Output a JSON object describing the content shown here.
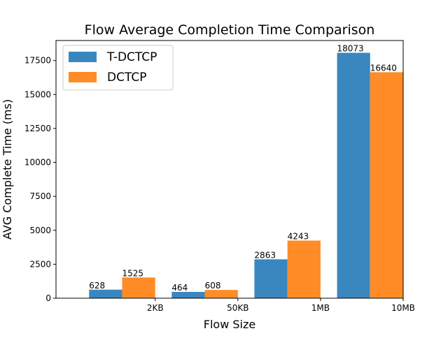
{
  "chart_data": {
    "type": "bar",
    "title": "Flow Average Completion Time Comparison",
    "xlabel": "Flow Size",
    "ylabel": "AVG Complete Time (ms)",
    "categories": [
      "2KB",
      "50KB",
      "1MB",
      "10MB"
    ],
    "series": [
      {
        "name": "T-DCTCP",
        "color": "#3a87c0",
        "values": [
          628,
          464,
          2863,
          18073
        ]
      },
      {
        "name": "DCTCP",
        "color": "#ff8c26",
        "values": [
          1525,
          608,
          4243,
          16640
        ]
      }
    ],
    "data_labels": [
      [
        "628",
        "464",
        "2863",
        "18073"
      ],
      [
        "1525",
        "608",
        "4243",
        "16640"
      ]
    ],
    "yticks": [
      0,
      2500,
      5000,
      7500,
      10000,
      12500,
      15000,
      17500
    ],
    "ytick_labels": [
      "0",
      "2500",
      "5000",
      "7500",
      "10000",
      "12500",
      "15000",
      "17500"
    ],
    "ylim": [
      0,
      18977
    ],
    "grid": false,
    "legend_position": "top-left"
  }
}
